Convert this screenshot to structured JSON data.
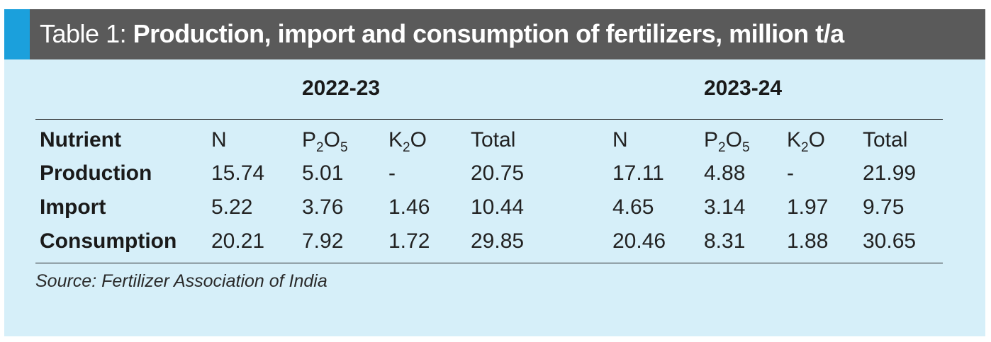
{
  "title": {
    "lead": "Table 1: ",
    "main": "Production, import and consumption of fertilizers, million t/a"
  },
  "years": [
    "2022-23",
    "2023-24"
  ],
  "columns": {
    "label": "Nutrient",
    "n": "N",
    "p2o5": {
      "a": "P",
      "s1": "2",
      "b": "O",
      "s2": "5"
    },
    "k2o": {
      "a": "K",
      "s1": "2",
      "b": "O"
    },
    "total": "Total"
  },
  "rows": [
    {
      "label": "Production",
      "y1": [
        "15.74",
        "5.01",
        "-",
        "20.75"
      ],
      "y2": [
        "17.11",
        "4.88",
        "-",
        "21.99"
      ]
    },
    {
      "label": "Import",
      "y1": [
        "5.22",
        "3.76",
        "1.46",
        "10.44"
      ],
      "y2": [
        "4.65",
        "3.14",
        "1.97",
        "9.75"
      ]
    },
    {
      "label": "Consumption",
      "y1": [
        "20.21",
        "7.92",
        "1.72",
        "29.85"
      ],
      "y2": [
        "20.46",
        "8.31",
        "1.88",
        "30.65"
      ]
    }
  ],
  "source": "Source: Fertilizer Association of India",
  "colors": {
    "header": "#5a5a5a",
    "accent": "#1ba0dc",
    "panel": "#d6eff9"
  }
}
